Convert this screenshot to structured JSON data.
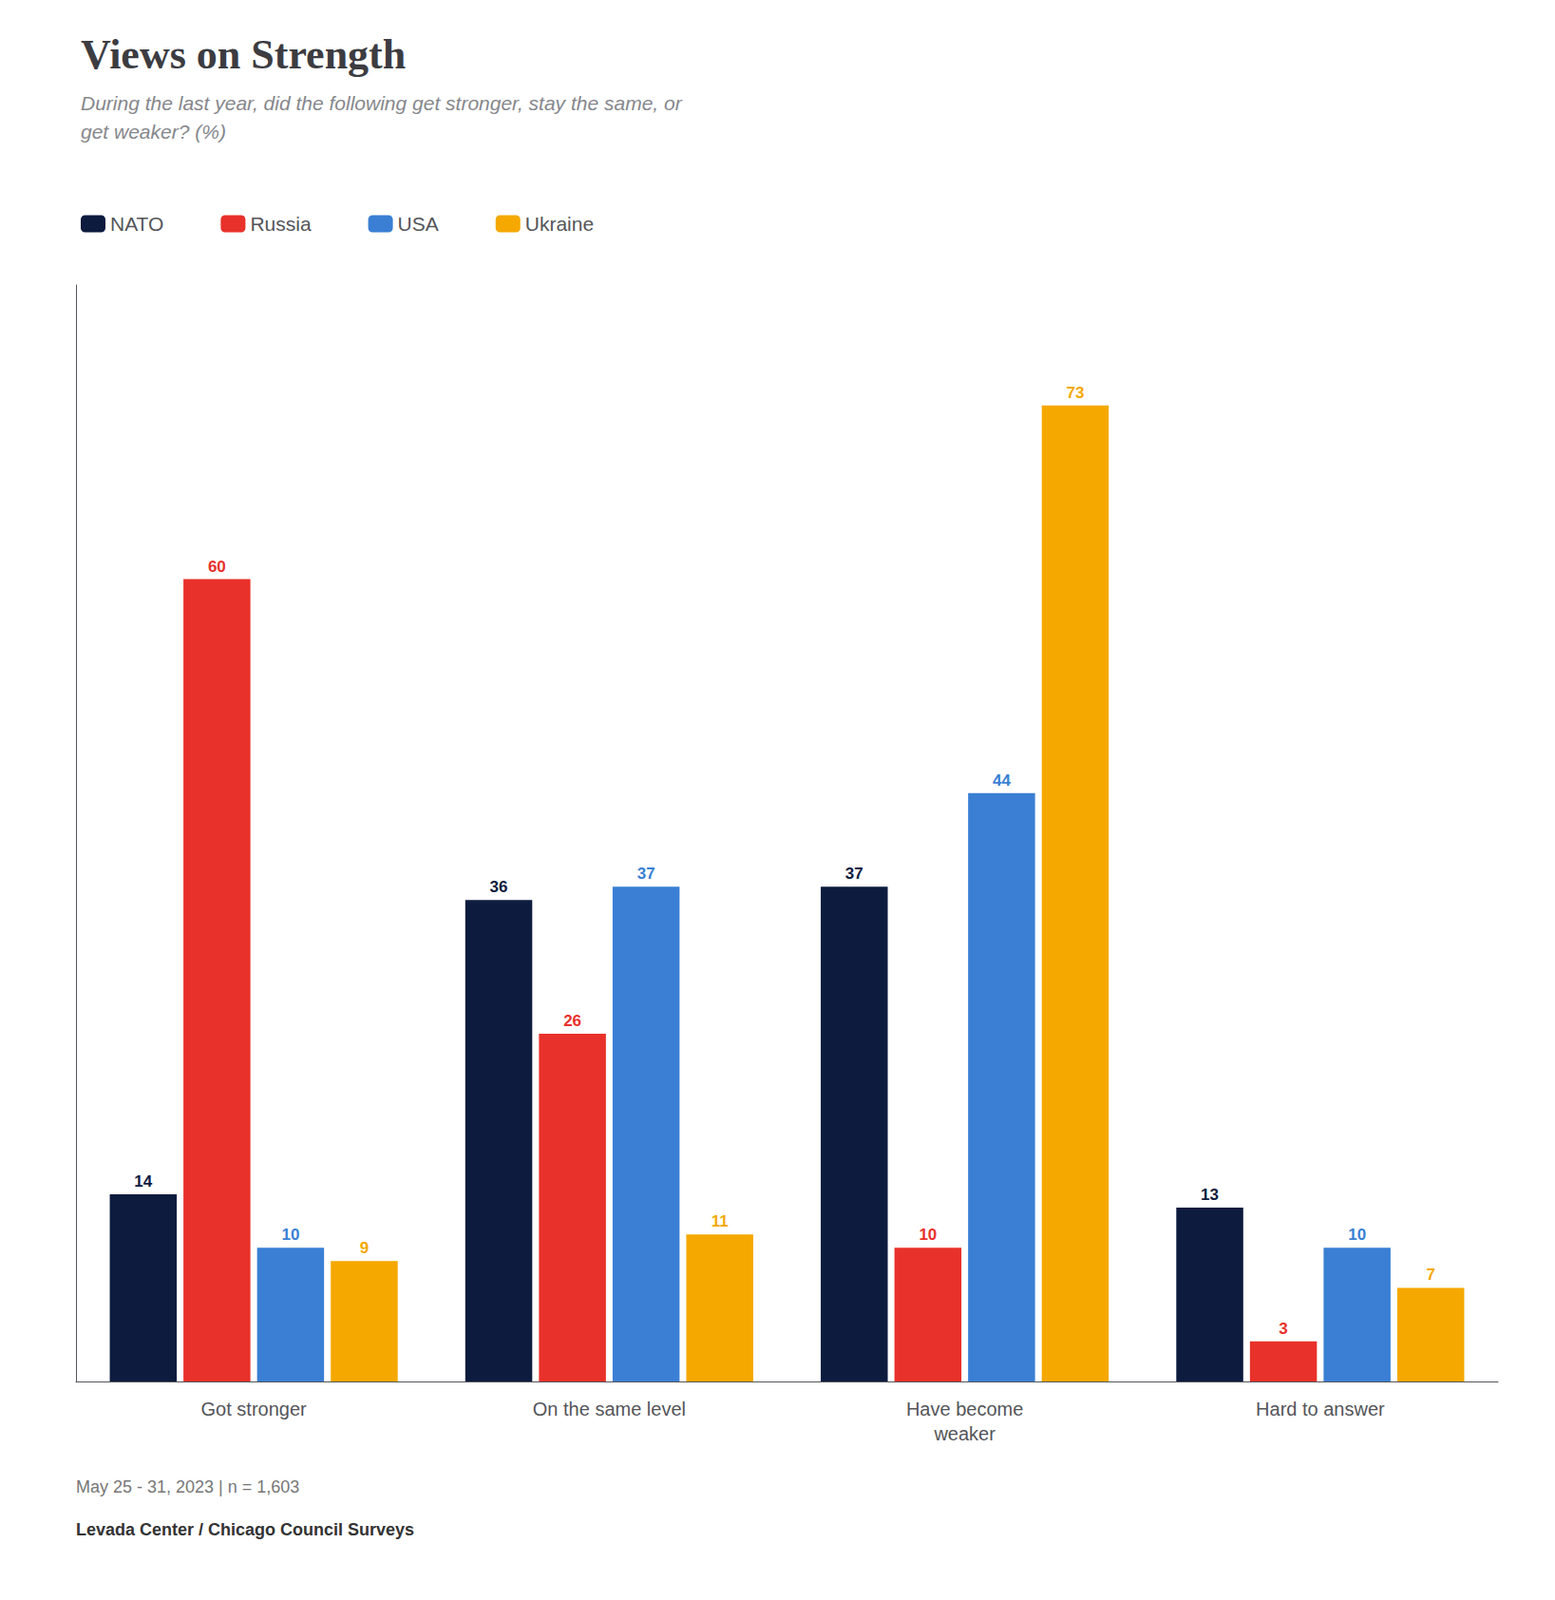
{
  "chart_data": {
    "type": "bar",
    "title": "Views on Strength",
    "subtitle": "During the last year, did the following get stronger, stay the same, or\nget weaker? (%)",
    "categories": [
      "Got stronger",
      "On the same level",
      "Have become\nweaker",
      "Hard to answer"
    ],
    "series": [
      {
        "name": "NATO",
        "color": "#0d1b3e",
        "values": [
          14,
          36,
          37,
          13
        ]
      },
      {
        "name": "Russia",
        "color": "#e8312a",
        "values": [
          60,
          26,
          10,
          3
        ]
      },
      {
        "name": "USA",
        "color": "#3a7fd4",
        "values": [
          10,
          37,
          44,
          10
        ]
      },
      {
        "name": "Ukraine",
        "color": "#f5a800",
        "values": [
          9,
          11,
          73,
          7
        ]
      }
    ],
    "ylim": [
      0,
      82
    ],
    "grid": false,
    "legend": "top",
    "data_labels": true,
    "tick_labels": "x",
    "annotations": [
      "May 25 - 31, 2023 | n = 1,603",
      "Levada Center / Chicago Council Surveys"
    ]
  }
}
